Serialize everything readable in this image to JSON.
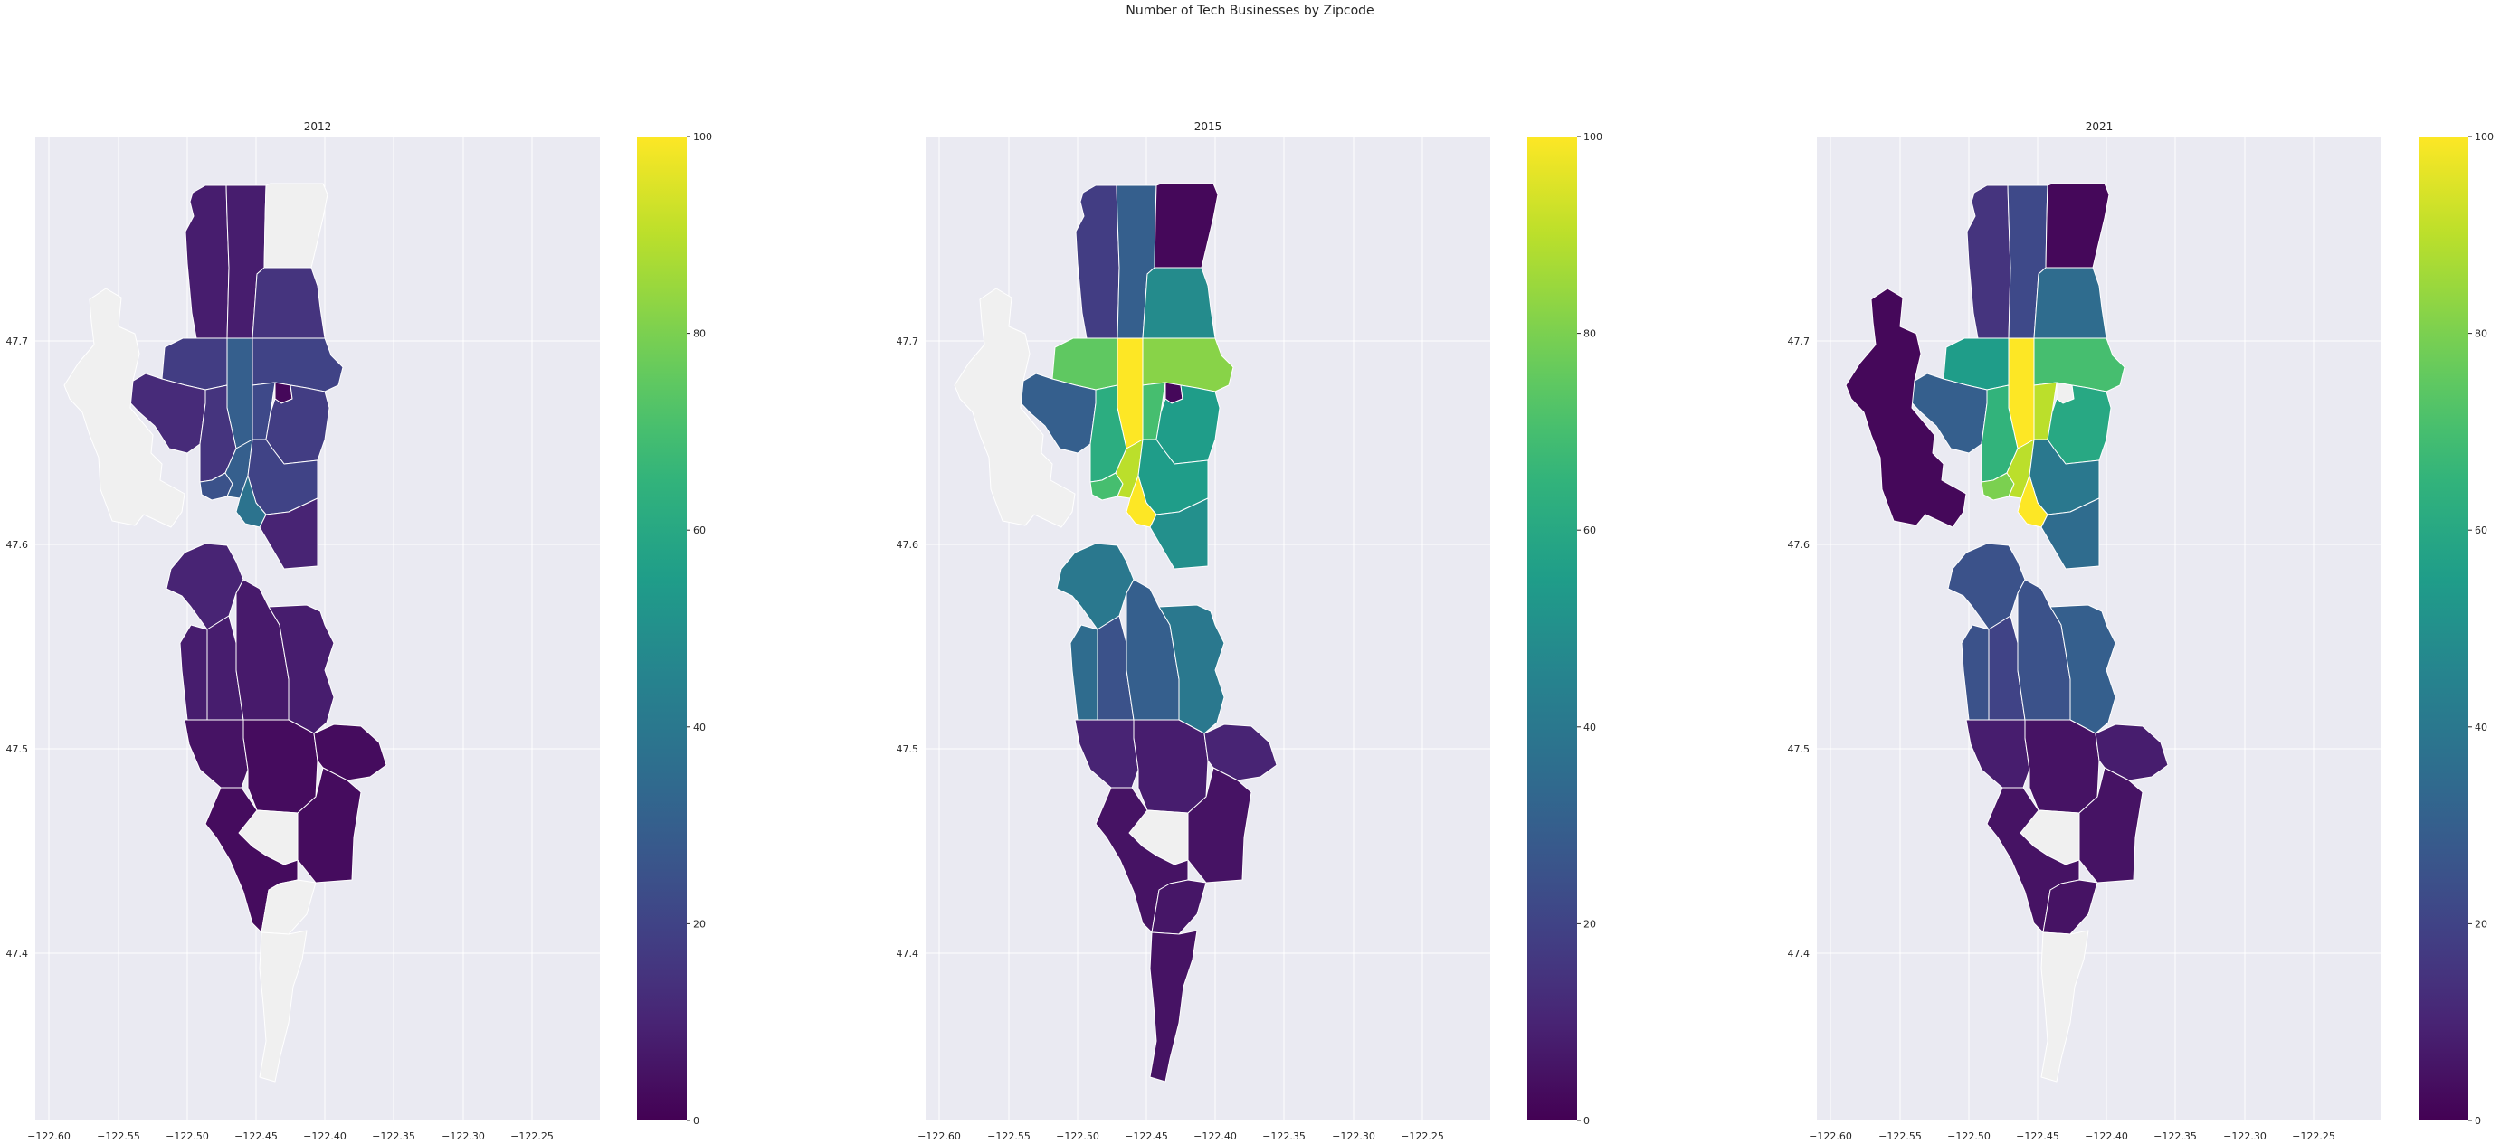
{
  "figure": {
    "title": "Number of Tech Businesses by Zipcode"
  },
  "colors": {
    "axes_background": "#eaeaf2",
    "grid": "#ffffff",
    "missing_fill": "#f0f0f0",
    "boundary": "#ffffff"
  },
  "chart_data": {
    "type": "choropleth",
    "colormap": "viridis",
    "value_range": [
      0,
      100
    ],
    "colorbar_ticks": [
      "0",
      "20",
      "40",
      "60",
      "80",
      "100"
    ],
    "x_ticks": [
      "−122.60",
      "−122.55",
      "−122.50",
      "−122.45",
      "−122.40",
      "−122.35",
      "−122.30",
      "−122.25"
    ],
    "y_ticks": [
      "47.4",
      "47.5",
      "47.6",
      "47.7"
    ],
    "xlim": [
      -122.615,
      -122.2
    ],
    "ylim": [
      47.33,
      47.79
    ],
    "regions": [
      "north_w",
      "north_c",
      "north_e",
      "ne_upper",
      "nw_band",
      "n_center",
      "ne_mid",
      "ballard",
      "fremont",
      "wallingford",
      "greenlake_pond",
      "ne_lower",
      "qa",
      "slu",
      "capitol",
      "downtown",
      "cd",
      "west_seattle_n",
      "delridge",
      "beacon",
      "seward",
      "rainier",
      "s_w1",
      "s_center",
      "s_e1",
      "kent",
      "s_tukwila",
      "renton",
      "sea_tac",
      "south_tail",
      "vashon"
    ],
    "panels": [
      {
        "year": "2012",
        "values": {
          "north_w": 8,
          "north_c": 8,
          "north_e": null,
          "ne_upper": 15,
          "nw_band": 18,
          "n_center": 30,
          "ne_mid": 20,
          "ballard": 12,
          "fremont": 15,
          "wallingford": 22,
          "greenlake_pond": 2,
          "ne_lower": 18,
          "qa": 25,
          "slu": 30,
          "capitol": 20,
          "downtown": 38,
          "cd": 10,
          "west_seattle_n": 10,
          "delridge": 8,
          "beacon": 8,
          "seward": 7,
          "rainier": 8,
          "s_w1": 5,
          "s_center": 3,
          "s_e1": 3,
          "kent": 3,
          "s_tukwila": null,
          "renton": 3,
          "sea_tac": null,
          "south_tail": null,
          "vashon": null
        }
      },
      {
        "year": "2015",
        "values": {
          "north_w": 18,
          "north_c": 30,
          "north_e": 2,
          "ne_upper": 48,
          "nw_band": 75,
          "n_center": 100,
          "ne_mid": 82,
          "ballard": 30,
          "fremont": 62,
          "wallingford": 70,
          "greenlake_pond": 2,
          "ne_lower": 55,
          "qa": 70,
          "slu": 90,
          "capitol": 55,
          "downtown": 100,
          "cd": 50,
          "west_seattle_n": 40,
          "delridge": 35,
          "beacon": 25,
          "seward": 30,
          "rainier": 40,
          "s_w1": 10,
          "s_center": 8,
          "s_e1": 10,
          "kent": 5,
          "s_tukwila": null,
          "renton": 5,
          "sea_tac": 6,
          "south_tail": 5,
          "vashon": null
        }
      },
      {
        "year": "2021",
        "values": {
          "north_w": 15,
          "north_c": 22,
          "north_e": 2,
          "ne_upper": 35,
          "nw_band": 55,
          "n_center": 100,
          "ne_mid": 70,
          "ballard": 30,
          "fremont": 65,
          "wallingford": 90,
          "greenlake_pond": null,
          "ne_lower": 60,
          "qa": 80,
          "slu": 90,
          "capitol": 40,
          "downtown": 100,
          "cd": 35,
          "west_seattle_n": 25,
          "delridge": 25,
          "beacon": 20,
          "seward": 25,
          "rainier": 30,
          "s_w1": 8,
          "s_center": 5,
          "s_e1": 8,
          "kent": 5,
          "s_tukwila": null,
          "renton": 5,
          "sea_tac": 5,
          "south_tail": null,
          "vashon": 2
        }
      }
    ]
  }
}
